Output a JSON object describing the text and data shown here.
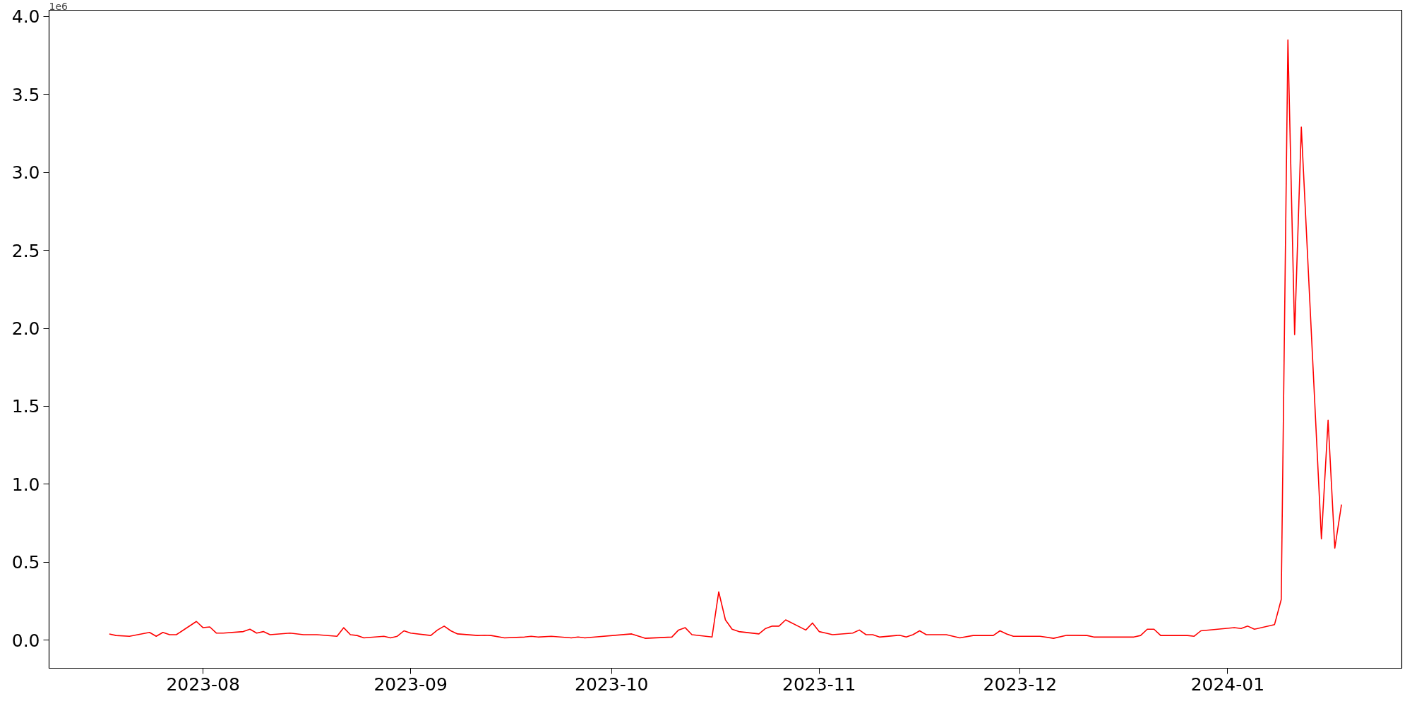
{
  "chart_data": {
    "type": "line",
    "x": [
      "2023-07-18",
      "2023-07-19",
      "2023-07-21",
      "2023-07-24",
      "2023-07-25",
      "2023-07-26",
      "2023-07-27",
      "2023-07-28",
      "2023-07-31",
      "2023-08-01",
      "2023-08-02",
      "2023-08-03",
      "2023-08-04",
      "2023-08-07",
      "2023-08-08",
      "2023-08-09",
      "2023-08-10",
      "2023-08-11",
      "2023-08-14",
      "2023-08-16",
      "2023-08-18",
      "2023-08-21",
      "2023-08-22",
      "2023-08-23",
      "2023-08-24",
      "2023-08-25",
      "2023-08-28",
      "2023-08-29",
      "2023-08-30",
      "2023-08-31",
      "2023-09-01",
      "2023-09-04",
      "2023-09-05",
      "2023-09-06",
      "2023-09-07",
      "2023-09-08",
      "2023-09-11",
      "2023-09-12",
      "2023-09-13",
      "2023-09-15",
      "2023-09-18",
      "2023-09-19",
      "2023-09-20",
      "2023-09-22",
      "2023-09-25",
      "2023-09-26",
      "2023-09-27",
      "2023-10-04",
      "2023-10-06",
      "2023-10-10",
      "2023-10-11",
      "2023-10-12",
      "2023-10-13",
      "2023-10-16",
      "2023-10-17",
      "2023-10-18",
      "2023-10-19",
      "2023-10-20",
      "2023-10-23",
      "2023-10-24",
      "2023-10-25",
      "2023-10-26",
      "2023-10-27",
      "2023-10-30",
      "2023-10-31",
      "2023-11-01",
      "2023-11-02",
      "2023-11-03",
      "2023-11-06",
      "2023-11-07",
      "2023-11-08",
      "2023-11-09",
      "2023-11-10",
      "2023-11-13",
      "2023-11-14",
      "2023-11-15",
      "2023-11-16",
      "2023-11-17",
      "2023-11-20",
      "2023-11-22",
      "2023-11-24",
      "2023-11-27",
      "2023-11-28",
      "2023-11-29",
      "2023-11-30",
      "2023-12-04",
      "2023-12-06",
      "2023-12-08",
      "2023-12-11",
      "2023-12-12",
      "2023-12-14",
      "2023-12-18",
      "2023-12-19",
      "2023-12-20",
      "2023-12-21",
      "2023-12-22",
      "2023-12-26",
      "2023-12-27",
      "2023-12-28",
      "2024-01-02",
      "2024-01-03",
      "2024-01-04",
      "2024-01-05",
      "2024-01-08",
      "2024-01-09",
      "2024-01-10",
      "2024-01-11",
      "2024-01-12",
      "2024-01-15",
      "2024-01-16",
      "2024-01-17",
      "2024-01-18"
    ],
    "series": [
      {
        "color": "#ff0000",
        "values": [
          0.04,
          0.03,
          0.025,
          0.05,
          0.025,
          0.05,
          0.035,
          0.035,
          0.12,
          0.08,
          0.085,
          0.045,
          0.045,
          0.055,
          0.07,
          0.045,
          0.055,
          0.035,
          0.045,
          0.035,
          0.035,
          0.025,
          0.08,
          0.035,
          0.03,
          0.015,
          0.025,
          0.015,
          0.025,
          0.06,
          0.045,
          0.03,
          0.065,
          0.09,
          0.06,
          0.04,
          0.03,
          0.032,
          0.03,
          0.015,
          0.02,
          0.025,
          0.02,
          0.025,
          0.015,
          0.02,
          0.015,
          0.04,
          0.012,
          0.02,
          0.065,
          0.08,
          0.035,
          0.02,
          0.31,
          0.13,
          0.07,
          0.055,
          0.04,
          0.075,
          0.09,
          0.09,
          0.13,
          0.065,
          0.11,
          0.055,
          0.045,
          0.035,
          0.045,
          0.065,
          0.035,
          0.035,
          0.02,
          0.032,
          0.02,
          0.035,
          0.06,
          0.035,
          0.035,
          0.015,
          0.03,
          0.03,
          0.06,
          0.04,
          0.025,
          0.025,
          0.012,
          0.032,
          0.03,
          0.02,
          0.02,
          0.02,
          0.03,
          0.07,
          0.07,
          0.03,
          0.03,
          0.025,
          0.06,
          0.08,
          0.075,
          0.09,
          0.07,
          0.1,
          0.26,
          3.85,
          1.96,
          3.29,
          0.65,
          1.41,
          0.59,
          0.87
        ]
      }
    ],
    "xlim": [
      "2023-07-09",
      "2024-01-27"
    ],
    "xticks": [
      {
        "value": "2023-08-01",
        "label": "2023-08"
      },
      {
        "value": "2023-09-01",
        "label": "2023-09"
      },
      {
        "value": "2023-10-01",
        "label": "2023-10"
      },
      {
        "value": "2023-11-01",
        "label": "2023-11"
      },
      {
        "value": "2023-12-01",
        "label": "2023-12"
      },
      {
        "value": "2024-01-01",
        "label": "2024-01"
      }
    ],
    "ylim": [
      -0.18,
      4.04
    ],
    "yticks": [
      {
        "value": 0,
        "label": "0.0"
      },
      {
        "value": 0.5,
        "label": "0.5"
      },
      {
        "value": 1,
        "label": "1.0"
      },
      {
        "value": 1.5,
        "label": "1.5"
      },
      {
        "value": 2,
        "label": "2.0"
      },
      {
        "value": 2.5,
        "label": "2.5"
      },
      {
        "value": 3,
        "label": "3.0"
      },
      {
        "value": 3.5,
        "label": "3.5"
      },
      {
        "value": 4,
        "label": "4.0"
      }
    ],
    "annotations": [
      "1e6"
    ],
    "line_style": "solid",
    "grid": false
  }
}
